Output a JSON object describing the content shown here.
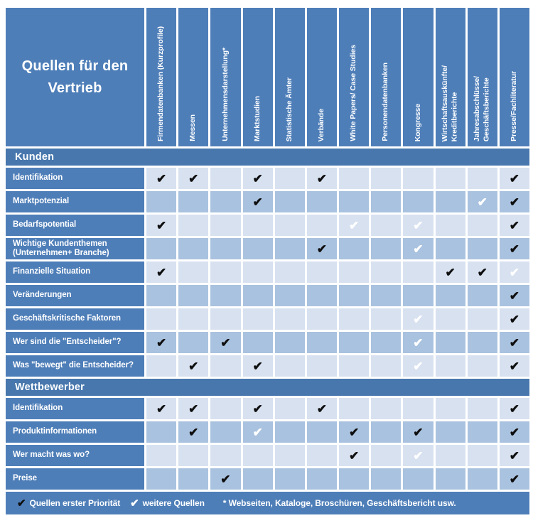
{
  "title": "Quellen für den Vertrieb",
  "colors": {
    "accent_blue": "#4e7eb8",
    "section_bar_blue": "#4777ad",
    "row_light": "#d7e1f0",
    "row_dark": "#a9c2df",
    "check_priority": "#0f0f0f",
    "check_secondary": "#ffffff"
  },
  "check_symbol": "✔",
  "columns": [
    "Firmendatenbanken (Kurzprofile)",
    "Messen",
    "Unternehmensdarstellung*",
    "Marktstudien",
    "Statistische Ämter",
    "Verbände",
    "White Papers/ Case Studies",
    "Personendatenbanken",
    "Kongresse",
    "Wirtschaftsauskünfte/\nKreditberichte",
    "Jahresabschlüsse/\nGeschäftsberichte",
    "Presse/Fachliteratur"
  ],
  "sections": [
    {
      "name": "Kunden",
      "rows": [
        {
          "label": "Identifikation",
          "checks": [
            "P",
            "P",
            "",
            "P",
            "",
            "P",
            "",
            "",
            "",
            "",
            "",
            "P"
          ]
        },
        {
          "label": "Marktpotenzial",
          "checks": [
            "",
            "",
            "",
            "P",
            "",
            "",
            "",
            "",
            "",
            "",
            "S",
            "P"
          ]
        },
        {
          "label": "Bedarfspotential",
          "checks": [
            "P",
            "",
            "",
            "",
            "",
            "",
            "S",
            "",
            "S",
            "",
            "",
            "P"
          ]
        },
        {
          "label": "Wichtige Kundenthemen\n(Unternehmen+ Branche)",
          "checks": [
            "",
            "",
            "",
            "",
            "",
            "P",
            "",
            "",
            "S",
            "",
            "",
            "P"
          ]
        },
        {
          "label": "Finanzielle Situation",
          "checks": [
            "P",
            "",
            "",
            "",
            "",
            "",
            "",
            "",
            "",
            "P",
            "P",
            "S"
          ]
        },
        {
          "label": "Veränderungen",
          "checks": [
            "",
            "",
            "",
            "",
            "",
            "",
            "",
            "",
            "",
            "",
            "",
            "P"
          ]
        },
        {
          "label": "Geschäftskritische Faktoren",
          "checks": [
            "",
            "",
            "",
            "",
            "",
            "",
            "",
            "",
            "S",
            "",
            "",
            "P"
          ]
        },
        {
          "label": "Wer sind die \"Entscheider\"?",
          "checks": [
            "P",
            "",
            "P",
            "",
            "",
            "",
            "",
            "",
            "S",
            "",
            "",
            "P"
          ]
        },
        {
          "label": "Was \"bewegt\" die Entscheider?",
          "checks": [
            "",
            "P",
            "",
            "P",
            "",
            "",
            "",
            "",
            "S",
            "",
            "",
            "P"
          ]
        }
      ]
    },
    {
      "name": "Wettbewerber",
      "rows": [
        {
          "label": "Identifikation",
          "checks": [
            "P",
            "P",
            "",
            "P",
            "",
            "P",
            "",
            "",
            "",
            "",
            "",
            "P"
          ]
        },
        {
          "label": "Produktinformationen",
          "checks": [
            "",
            "P",
            "",
            "S",
            "",
            "",
            "P",
            "",
            "P",
            "",
            "",
            "P"
          ]
        },
        {
          "label": "Wer macht was wo?",
          "checks": [
            "",
            "",
            "",
            "",
            "",
            "",
            "P",
            "",
            "S",
            "",
            "",
            "P"
          ]
        },
        {
          "label": "Preise",
          "checks": [
            "",
            "",
            "P",
            "",
            "",
            "",
            "",
            "",
            "",
            "",
            "",
            "P"
          ]
        }
      ]
    }
  ],
  "legend": {
    "priority_label": "Quellen erster Priorität",
    "secondary_label": "weitere Quellen",
    "footnote": "* Webseiten, Kataloge, Broschüren, Geschäftsbericht usw."
  }
}
